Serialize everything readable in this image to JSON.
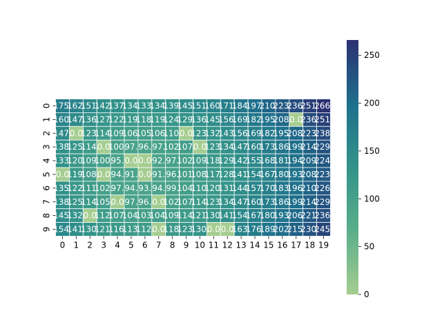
{
  "chart_data": {
    "type": "heatmap",
    "title": "",
    "xlabel": "",
    "ylabel": "",
    "x_ticks": [
      "0",
      "1",
      "2",
      "3",
      "4",
      "5",
      "6",
      "7",
      "8",
      "9",
      "10",
      "11",
      "12",
      "13",
      "14",
      "15",
      "16",
      "17",
      "18",
      "19"
    ],
    "y_ticks": [
      "0",
      "1",
      "2",
      "3",
      "4",
      "5",
      "6",
      "7",
      "8",
      "9"
    ],
    "cell_labels": [
      [
        "175.",
        "162.",
        "151.",
        "142.",
        "137.",
        "134.",
        "133.",
        "134.",
        "139.",
        "145.",
        "151.",
        "160.",
        "171.",
        "184.",
        "197.",
        "210.",
        "223.",
        "236.",
        "251.",
        "266."
      ],
      [
        "160.",
        "147.",
        "136.",
        "127.",
        "122.",
        "119.",
        "118.",
        "119.",
        "124.",
        "129.",
        "136.",
        "145.",
        "156.",
        "169.",
        "182.",
        "195.",
        "208.",
        "0.0",
        "236.",
        "251."
      ],
      [
        "147.",
        "0.0",
        "123.",
        "114.",
        "109.",
        "106.",
        "105.",
        "106.",
        "110.",
        "0.0",
        "123.",
        "132.",
        "143.",
        "156.",
        "169.",
        "182.",
        "195.",
        "208.",
        "223.",
        "238."
      ],
      [
        "138.",
        "125.",
        "114.",
        "0.0",
        "100.",
        "97.",
        "96.",
        "97.",
        "102.",
        "107.",
        "0.0",
        "123.",
        "134.",
        "147.",
        "160.",
        "173.",
        "186.",
        "199.",
        "214.",
        "229."
      ],
      [
        "133.",
        "120.",
        "109.",
        "100.",
        "95.",
        "0.0",
        "0.0",
        "92.",
        "97.",
        "102.",
        "109.",
        "118.",
        "129.",
        "142.",
        "155.",
        "168.",
        "181.",
        "194.",
        "209.",
        "224."
      ],
      [
        "0.0",
        "119.",
        "108.",
        "0.0",
        "94.",
        "91.",
        "0.0",
        "91.",
        "96.",
        "101.",
        "108.",
        "117.",
        "128.",
        "141.",
        "154.",
        "167.",
        "180.",
        "193.",
        "208.",
        "223."
      ],
      [
        "135.",
        "122.",
        "111.",
        "102.",
        "97.",
        "94.",
        "93.",
        "94.",
        "99.",
        "104.",
        "110.",
        "120.",
        "131.",
        "144.",
        "157.",
        "170.",
        "183.",
        "196.",
        "210.",
        "226."
      ],
      [
        "138.",
        "125.",
        "114.",
        "105.",
        "0.0",
        "97.",
        "96.",
        "0.0",
        "102.",
        "107.",
        "114.",
        "123.",
        "134.",
        "147.",
        "160.",
        "173.",
        "186.",
        "199.",
        "214.",
        "229."
      ],
      [
        "145.",
        "132.",
        "0.0",
        "112.",
        "107.",
        "104.",
        "103.",
        "104.",
        "109.",
        "114.",
        "121.",
        "130.",
        "141.",
        "154.",
        "167.",
        "180.",
        "193.",
        "206.",
        "221.",
        "236."
      ],
      [
        "154.",
        "141.",
        "130.",
        "121.",
        "116.",
        "113.",
        "112.",
        "0.0",
        "118.",
        "123.",
        "130.",
        "0.0",
        "0.0",
        "163.",
        "176.",
        "189.",
        "202.",
        "215.",
        "230.",
        "245."
      ]
    ],
    "values": [
      [
        175,
        162,
        151,
        142,
        137,
        134,
        133,
        134,
        139,
        145,
        151,
        160,
        171,
        184,
        197,
        210,
        223,
        236,
        251,
        266
      ],
      [
        160,
        147,
        136,
        127,
        122,
        119,
        118,
        119,
        124,
        129,
        136,
        145,
        156,
        169,
        182,
        195,
        208,
        0,
        236,
        251
      ],
      [
        147,
        0,
        123,
        114,
        109,
        106,
        105,
        106,
        110,
        0,
        123,
        132,
        143,
        156,
        169,
        182,
        195,
        208,
        223,
        238
      ],
      [
        138,
        125,
        114,
        0,
        100,
        97,
        96,
        97,
        102,
        107,
        0,
        123,
        134,
        147,
        160,
        173,
        186,
        199,
        214,
        229
      ],
      [
        133,
        120,
        109,
        100,
        95,
        0,
        0,
        92,
        97,
        102,
        109,
        118,
        129,
        142,
        155,
        168,
        181,
        194,
        209,
        224
      ],
      [
        0,
        119,
        108,
        0,
        94,
        91,
        0,
        91,
        96,
        101,
        108,
        117,
        128,
        141,
        154,
        167,
        180,
        193,
        208,
        223
      ],
      [
        135,
        122,
        111,
        102,
        97,
        94,
        93,
        94,
        99,
        104,
        110,
        120,
        131,
        144,
        157,
        170,
        183,
        196,
        210,
        226
      ],
      [
        138,
        125,
        114,
        105,
        0,
        97,
        96,
        0,
        102,
        107,
        114,
        123,
        134,
        147,
        160,
        173,
        186,
        199,
        214,
        229
      ],
      [
        145,
        132,
        0,
        112,
        107,
        104,
        103,
        104,
        109,
        114,
        121,
        130,
        141,
        154,
        167,
        180,
        193,
        206,
        221,
        236
      ],
      [
        154,
        141,
        130,
        121,
        116,
        113,
        112,
        0,
        118,
        123,
        130,
        0,
        0,
        163,
        176,
        189,
        202,
        215,
        230,
        245
      ]
    ],
    "vmin": 0,
    "vmax": 266,
    "colormap": "crest",
    "colorbar": {
      "ticks": [
        "0",
        "50",
        "100",
        "150",
        "200",
        "250"
      ],
      "tick_values": [
        0,
        50,
        100,
        150,
        200,
        250
      ]
    },
    "grid": true,
    "cell_border_color": "#ffffff",
    "annotation_color": "#ffffff",
    "colors": {
      "low": "#a5cd90",
      "mid_low": "#5aae8a",
      "mid": "#33938a",
      "mid_high": "#1e6f8c",
      "high": "#2c3172"
    }
  }
}
